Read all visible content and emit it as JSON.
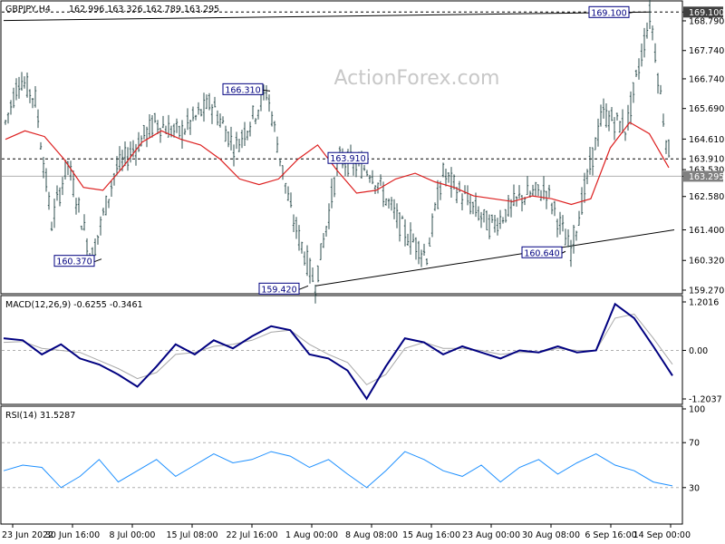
{
  "price_panel": {
    "symbol": "GBPJPY,H4",
    "ohlc": "162.996 163.326 162.789 163.295",
    "watermark": "ActionForex.com",
    "current_price": "163.295",
    "callouts": [
      "169.100",
      "166.310",
      "163.910",
      "160.370",
      "160.640",
      "159.420"
    ]
  },
  "macd_panel": {
    "label": "MACD(12,26,9) -0.6255 -0.3461"
  },
  "rsi_panel": {
    "label": "RSI(14) 31.5287"
  },
  "colors": {
    "bars": "#2f4f4f",
    "sma": "#dd2020",
    "macd": "#000080",
    "signal": "#a8a8a8",
    "rsi": "#1e90ff",
    "axis_text": "#000000",
    "price_tag_bg": "#808080",
    "grid": "#b0b0b0",
    "trendline": "#000000"
  },
  "chart_data": [
    {
      "type": "bar",
      "subtype": "ohlc",
      "panel": "price",
      "ylim": [
        159.27,
        169.27
      ],
      "y_ticks": [
        169.1,
        168.79,
        167.74,
        166.74,
        165.69,
        164.61,
        163.91,
        163.53,
        163.295,
        162.58,
        161.4,
        160.32,
        159.27
      ],
      "x_ticks": [
        "23 Jun 2022",
        "30 Jun 16:00",
        "8 Jul 00:00",
        "15 Jul 08:00",
        "22 Jul 16:00",
        "1 Aug 00:00",
        "8 Aug 08:00",
        "15 Aug 16:00",
        "23 Aug 00:00",
        "30 Aug 08:00",
        "6 Sep 16:00",
        "14 Sep 00:00"
      ],
      "horizontal_levels": [
        169.1,
        163.91,
        163.295
      ],
      "key_points": [
        {
          "x": "23 Jun 2022",
          "y": 165.0
        },
        {
          "x": "25 Jun",
          "y": 166.8
        },
        {
          "x": "27 Jun",
          "y": 166.0
        },
        {
          "x": "29 Jun",
          "y": 161.6
        },
        {
          "x": "1 Jul",
          "y": 163.8
        },
        {
          "x": "4 Jul",
          "y": 160.37
        },
        {
          "x": "7 Jul",
          "y": 163.5
        },
        {
          "x": "12 Jul",
          "y": 165.2
        },
        {
          "x": "15 Jul",
          "y": 164.8
        },
        {
          "x": "19 Jul",
          "y": 165.9
        },
        {
          "x": "22 Jul",
          "y": 164.3
        },
        {
          "x": "26 Jul",
          "y": 166.31
        },
        {
          "x": "29 Jul",
          "y": 162.0
        },
        {
          "x": "1 Aug",
          "y": 159.42
        },
        {
          "x": "4 Aug",
          "y": 163.91
        },
        {
          "x": "8 Aug",
          "y": 163.5
        },
        {
          "x": "12 Aug",
          "y": 161.4
        },
        {
          "x": "15 Aug",
          "y": 160.5
        },
        {
          "x": "17 Aug",
          "y": 163.4
        },
        {
          "x": "23 Aug",
          "y": 161.5
        },
        {
          "x": "27 Aug",
          "y": 162.6
        },
        {
          "x": "30 Aug",
          "y": 162.8
        },
        {
          "x": "2 Sep",
          "y": 160.64
        },
        {
          "x": "6 Sep",
          "y": 165.5
        },
        {
          "x": "9 Sep",
          "y": 165.0
        },
        {
          "x": "12 Sep",
          "y": 169.1
        },
        {
          "x": "13 Sep",
          "y": 166.8
        },
        {
          "x": "14 Sep",
          "y": 164.6
        },
        {
          "x": "15 Sep",
          "y": 163.295
        }
      ],
      "series": [
        {
          "name": "",
          "values": [
            164.6,
            164.9,
            164.7,
            163.9,
            162.9,
            162.8,
            163.6,
            164.5,
            164.9,
            164.6,
            164.4,
            163.9,
            163.2,
            163.0,
            163.2,
            163.9,
            164.4,
            163.5,
            162.7,
            162.8,
            163.2,
            163.4,
            163.1,
            162.9,
            162.6,
            162.5,
            162.4,
            162.6,
            162.5,
            162.3,
            162.5,
            164.3,
            165.2,
            164.8,
            163.6
          ]
        }
      ],
      "trendlines": [
        {
          "from": {
            "x": "23 Jun 2022",
            "y": 168.8
          },
          "to": {
            "x": "12 Sep",
            "y": 169.1
          }
        },
        {
          "from": {
            "x": "1 Aug",
            "y": 159.42
          },
          "to": {
            "x": "15 Sep",
            "y": 161.4
          }
        }
      ]
    },
    {
      "type": "line",
      "panel": "macd",
      "ylim": [
        -1.2037,
        1.2016
      ],
      "y_ticks": [
        1.2016,
        0.0,
        -1.2037
      ],
      "series": [
        {
          "name": "",
          "values": [
            0.3,
            0.25,
            -0.1,
            0.15,
            -0.2,
            -0.35,
            -0.6,
            -0.9,
            -0.4,
            0.15,
            -0.1,
            0.25,
            0.05,
            0.35,
            0.6,
            0.5,
            -0.1,
            -0.2,
            -0.5,
            -1.2,
            -0.4,
            0.3,
            0.2,
            -0.1,
            0.1,
            -0.05,
            -0.2,
            0.0,
            -0.05,
            0.1,
            -0.05,
            0.0,
            1.15,
            0.8,
            0.1,
            -0.6255
          ]
        },
        {
          "name": "",
          "values": [
            0.2,
            0.22,
            0.05,
            0.0,
            -0.05,
            -0.25,
            -0.45,
            -0.7,
            -0.55,
            -0.1,
            -0.05,
            0.1,
            0.15,
            0.25,
            0.45,
            0.5,
            0.15,
            -0.1,
            -0.3,
            -0.85,
            -0.6,
            0.05,
            0.2,
            0.05,
            0.05,
            0.0,
            -0.1,
            -0.05,
            -0.05,
            0.05,
            0.0,
            0.0,
            0.8,
            0.9,
            0.3,
            -0.3461
          ]
        }
      ]
    },
    {
      "type": "line",
      "panel": "rsi",
      "ylim": [
        0,
        100
      ],
      "y_ticks": [
        100,
        70,
        30
      ],
      "series": [
        {
          "name": "",
          "values": [
            45,
            50,
            48,
            30,
            40,
            55,
            35,
            45,
            55,
            40,
            50,
            60,
            52,
            55,
            62,
            58,
            48,
            55,
            42,
            30,
            45,
            62,
            55,
            45,
            40,
            50,
            35,
            48,
            55,
            42,
            52,
            60,
            50,
            45,
            35,
            31.5287
          ]
        }
      ]
    }
  ]
}
